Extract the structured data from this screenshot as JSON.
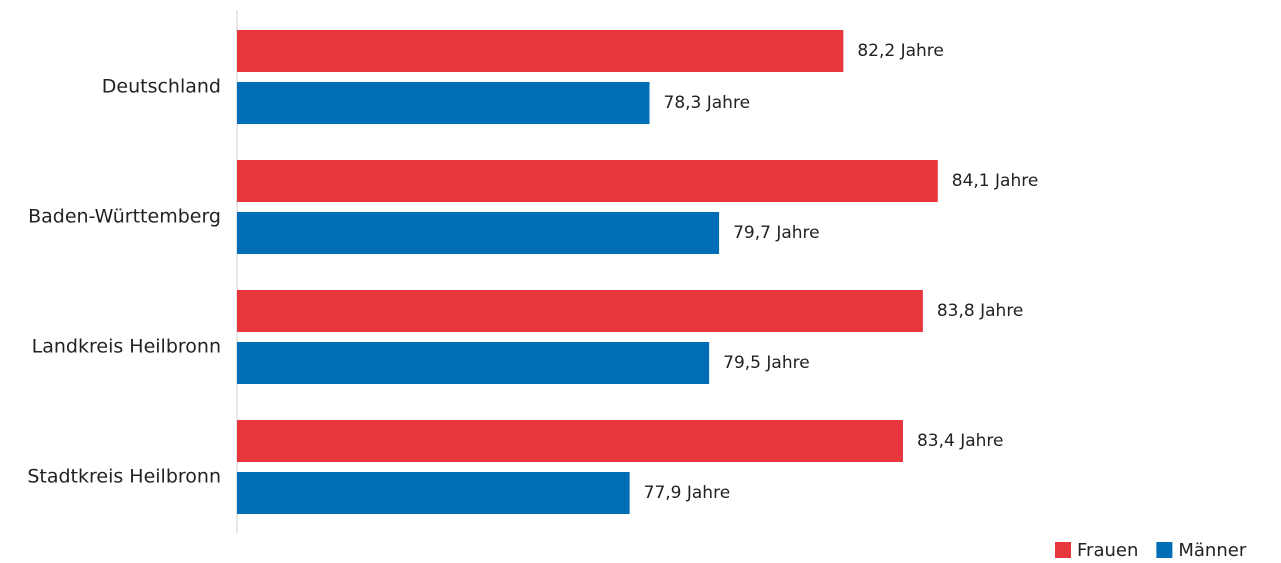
{
  "chart_data": {
    "type": "hbar",
    "categories": [
      "Deutschland",
      "Baden-Württemberg",
      "Landkreis Heilbronn",
      "Stadtkreis Heilbronn"
    ],
    "series": [
      {
        "name": "Frauen",
        "color": "#e8363d",
        "values": [
          82.2,
          84.1,
          83.8,
          83.4
        ],
        "value_labels": [
          "82,2 Jahre",
          "84,1 Jahre",
          "83,8 Jahre",
          "83,4 Jahre"
        ]
      },
      {
        "name": "Männer",
        "color": "#006eb7",
        "values": [
          78.3,
          79.7,
          79.5,
          77.9
        ],
        "value_labels": [
          "78,3 Jahre",
          "79,7 Jahre",
          "79,5 Jahre",
          "77,9 Jahre"
        ]
      }
    ],
    "xlim": [
      70,
      90
    ],
    "legend": "bottom-right"
  }
}
